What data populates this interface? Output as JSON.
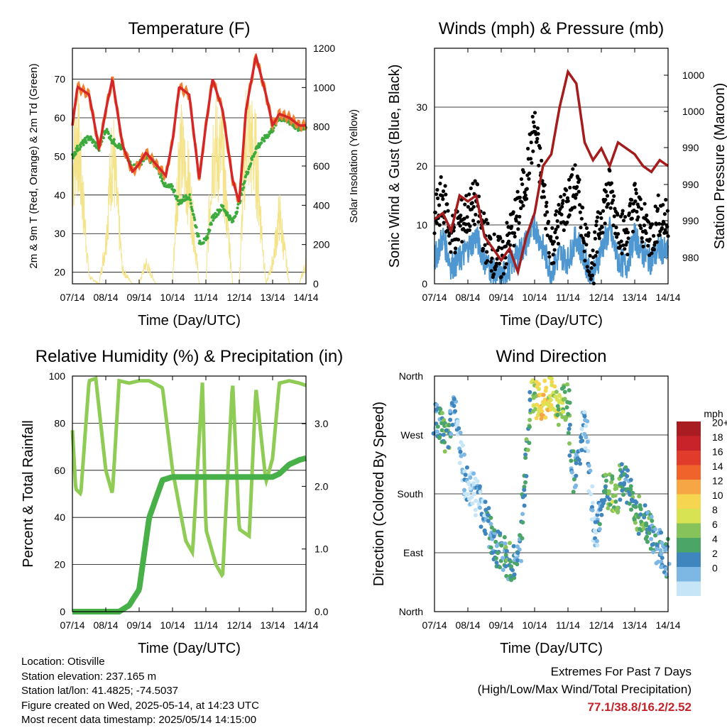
{
  "colors": {
    "temp2m": "#d62728",
    "temp9m": "#f28030",
    "dewpoint": "#3caa3c",
    "solar": "#f5e38a",
    "wind_speed": "#4f97d1",
    "wind_gust": "#000000",
    "pressure": "#a51c1c",
    "rh": "#8fcc55",
    "precip": "#48b048",
    "extremes": "#c4232b"
  },
  "x_ticks": [
    "07/14",
    "08/14",
    "09/14",
    "10/14",
    "11/14",
    "12/14",
    "13/14",
    "14/14"
  ],
  "chart_data": [
    {
      "id": "temperature",
      "type": "line",
      "title": "Temperature (F)",
      "xlabel": "Time (Day/UTC)",
      "ylabel": "2m & 9m T (Red, Orange) & 2m Td (Green)",
      "ylabel_right": "Solar Insolation (Yellow)",
      "ylim": [
        17,
        78
      ],
      "ylim_right": [
        0,
        1200
      ],
      "yticks": [
        20,
        30,
        40,
        50,
        60,
        70
      ],
      "yticks_right": [
        0,
        200,
        400,
        600,
        800,
        1000,
        1200
      ],
      "x": [
        0,
        0.15,
        0.5,
        0.8,
        1,
        1.2,
        1.5,
        1.8,
        2,
        2.2,
        2.5,
        2.8,
        3,
        3.2,
        3.5,
        3.8,
        4,
        4.2,
        4.5,
        4.8,
        5,
        5.2,
        5.5,
        5.8,
        6,
        6.2,
        6.5,
        6.8,
        7
      ],
      "series": [
        {
          "name": "2m T",
          "color_key": "temp2m",
          "values": [
            58,
            68,
            66,
            52,
            62,
            70,
            53,
            46,
            48,
            51,
            48,
            45,
            54,
            68,
            66,
            44,
            58,
            70,
            62,
            44,
            38,
            62,
            76,
            66,
            58,
            61,
            60,
            58,
            58
          ]
        },
        {
          "name": "2m Td",
          "color_key": "dewpoint",
          "values": [
            50,
            52,
            55,
            52,
            57,
            54,
            52,
            47,
            48,
            50,
            48,
            42,
            42,
            38,
            40,
            28,
            28,
            34,
            37,
            33,
            38,
            45,
            52,
            55,
            57,
            60,
            59,
            57,
            58
          ]
        },
        {
          "name": "Solar",
          "color_key": "solar",
          "axis": "right",
          "values": [
            800,
            1100,
            50,
            0,
            300,
            1000,
            100,
            0,
            0,
            150,
            0,
            0,
            0,
            1000,
            700,
            0,
            0,
            1000,
            900,
            0,
            0,
            1100,
            900,
            0,
            150,
            500,
            0,
            0,
            150
          ]
        }
      ]
    },
    {
      "id": "winds",
      "type": "scatter",
      "title": "Winds (mph) & Pressure (mb)",
      "xlabel": "Time (Day/UTC)",
      "ylabel": "Sonic Wind & Gust (Blue, Black)",
      "ylabel_right": "Station Pressure (Maroon)",
      "ylim": [
        0,
        40
      ],
      "yticks": [
        0,
        10,
        20,
        30
      ],
      "yticks_right_labels": [
        "980",
        "990",
        "990",
        "990",
        "1000",
        "1000"
      ],
      "x": [
        0,
        0.25,
        0.5,
        0.75,
        1,
        1.25,
        1.5,
        1.75,
        2,
        2.25,
        2.5,
        2.75,
        3,
        3.25,
        3.5,
        3.75,
        4,
        4.25,
        4.5,
        4.75,
        5,
        5.25,
        5.5,
        5.75,
        6,
        6.25,
        6.5,
        6.75,
        7
      ],
      "series": [
        {
          "name": "Sonic Wind",
          "color_key": "wind_speed",
          "values": [
            4,
            8,
            3,
            4,
            6,
            8,
            4,
            2,
            1,
            3,
            5,
            7,
            10,
            6,
            2,
            5,
            4,
            8,
            4,
            1,
            6,
            9,
            4,
            3,
            8,
            5,
            4,
            6,
            5
          ]
        },
        {
          "name": "Gust",
          "color_key": "wind_gust",
          "values": [
            11,
            15,
            8,
            10,
            12,
            14,
            8,
            5,
            4,
            8,
            12,
            18,
            27,
            16,
            6,
            11,
            14,
            17,
            8,
            3,
            12,
            16,
            10,
            8,
            14,
            10,
            8,
            12,
            10
          ]
        },
        {
          "name": "Pressure",
          "color_key": "pressure",
          "values": [
            11,
            12,
            9,
            15,
            14,
            15,
            8,
            6,
            4,
            6,
            2,
            8,
            12,
            20,
            22,
            30,
            36,
            34,
            24,
            21,
            23,
            20,
            24,
            23,
            22,
            20,
            19,
            21,
            20
          ]
        }
      ]
    },
    {
      "id": "humidity",
      "type": "line",
      "title": "Relative Humidity (%) & Precipitation (in)",
      "xlabel": "Time (Day/UTC)",
      "ylabel": "Percent & Total Rainfall",
      "ylim": [
        0,
        100
      ],
      "yticks": [
        0,
        20,
        40,
        60,
        80,
        100
      ],
      "yticks_right": [
        "0.0",
        "1.0",
        "2.0",
        "3.0"
      ],
      "ylim_right": [
        0,
        3.76
      ],
      "x": [
        0,
        0.1,
        0.25,
        0.5,
        0.7,
        1,
        1.2,
        1.4,
        1.7,
        2,
        2.3,
        2.7,
        3,
        3.4,
        3.6,
        3.9,
        4,
        4.3,
        4.5,
        4.8,
        5,
        5.3,
        5.5,
        5.8,
        6,
        6.2,
        6.5,
        6.8,
        7
      ],
      "series": [
        {
          "name": "RH",
          "color_key": "rh",
          "values": [
            77,
            52,
            50,
            98,
            99,
            60,
            50,
            98,
            97,
            98,
            98,
            95,
            60,
            30,
            25,
            98,
            35,
            20,
            15,
            98,
            35,
            32,
            95,
            55,
            65,
            97,
            98,
            97,
            96
          ]
        },
        {
          "name": "Precip",
          "color_key": "precip",
          "axis": "right",
          "values": [
            0,
            0,
            0,
            0,
            0,
            0,
            0,
            0,
            0.1,
            0.35,
            1.5,
            2.1,
            2.15,
            2.15,
            2.15,
            2.15,
            2.15,
            2.15,
            2.15,
            2.15,
            2.15,
            2.15,
            2.15,
            2.15,
            2.15,
            2.2,
            2.35,
            2.42,
            2.45
          ]
        }
      ]
    },
    {
      "id": "wind_direction",
      "type": "scatter",
      "title": "Wind Direction",
      "xlabel": "Time (Day/UTC)",
      "ylabel": "Direction (Colored By Speed)",
      "ylim": [
        0,
        360
      ],
      "yticks_labels": [
        "North",
        "East",
        "South",
        "West",
        "North"
      ],
      "x": [
        0,
        0.2,
        0.4,
        0.6,
        0.9,
        1.2,
        1.5,
        1.8,
        2.2,
        2.5,
        2.9,
        3.2,
        3.4,
        3.7,
        4,
        4.2,
        4.5,
        4.8,
        5.1,
        5.4,
        5.7,
        6,
        6.2,
        6.5,
        6.8,
        7
      ],
      "values": [
        300,
        280,
        260,
        320,
        200,
        180,
        150,
        100,
        80,
        70,
        330,
        320,
        330,
        315,
        320,
        200,
        300,
        100,
        190,
        170,
        210,
        160,
        140,
        120,
        90,
        80
      ],
      "speeds": [
        3,
        5,
        6,
        2,
        2,
        1,
        3,
        4,
        5,
        3,
        7,
        12,
        11,
        9,
        7,
        3,
        2,
        2,
        5,
        8,
        4,
        6,
        7,
        4,
        3,
        4
      ],
      "legend_title": "mph",
      "legend_labels": [
        "20+",
        "18",
        "16",
        "14",
        "12",
        "10",
        "8",
        "6",
        "4",
        "2",
        "0"
      ],
      "legend_colors": [
        "#a81c22",
        "#c8232a",
        "#e13b2c",
        "#f0642c",
        "#f7a645",
        "#f6d650",
        "#d8e354",
        "#86c35a",
        "#4aa567",
        "#3f86bf",
        "#7db8e4",
        "#c6e6f7"
      ]
    }
  ],
  "info": {
    "location": "Location: Otisville",
    "elevation": "Station elevation: 237.165 m",
    "latlon": "Station lat/lon: 41.4825; -74.5037",
    "created": "Figure created on Wed, 2025-05-14, at 14:23 UTC",
    "recent": "Most recent data timestamp: 2025/05/14 14:15:00"
  },
  "extremes": {
    "title": "Extremes For Past 7 Days",
    "subtitle": "(High/Low/Max Wind/Total Precipitation)",
    "values": "77.1/38.8/16.2/2.52"
  }
}
